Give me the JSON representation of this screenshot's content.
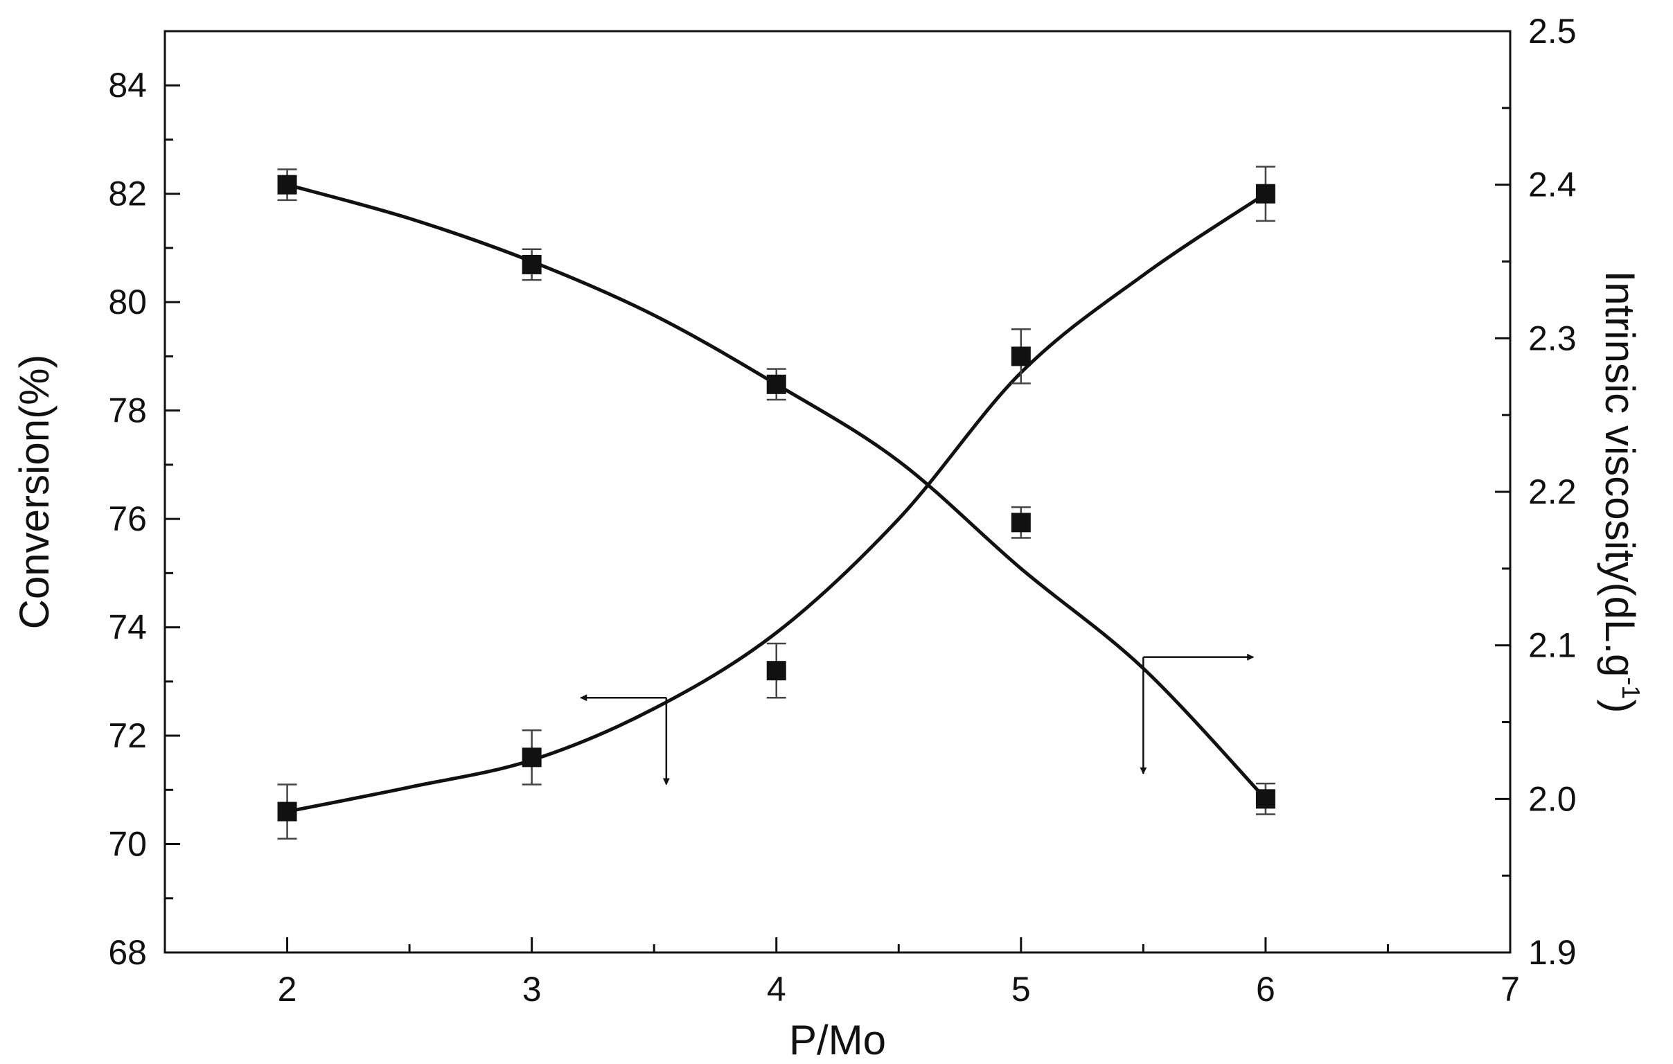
{
  "chart_data": {
    "type": "scatter",
    "title": "",
    "xlabel": "P/Mo",
    "ylabel_left": "Conversion(%)",
    "ylabel_right_main": "Intrinsic viscosity(dL.g",
    "ylabel_right_sup": "-1",
    "ylabel_right_close": ")",
    "xlim": [
      1.5,
      7
    ],
    "ylim_left": [
      68,
      85
    ],
    "ylim_right": [
      1.9,
      2.5
    ],
    "x_ticks": [
      2,
      3,
      4,
      5,
      6,
      7
    ],
    "y_left_ticks": [
      68,
      70,
      72,
      74,
      76,
      78,
      80,
      82,
      84
    ],
    "y_right_ticks": [
      1.9,
      2.0,
      2.1,
      2.2,
      2.3,
      2.4,
      2.5
    ],
    "y_right_tick_labels": [
      "1.9",
      "2.0",
      "2.1",
      "2.2",
      "2.3",
      "2.4",
      "2.5"
    ],
    "grid": false,
    "legend": "none",
    "series": [
      {
        "axis": "left",
        "x": [
          2,
          3,
          4,
          5,
          6
        ],
        "y": [
          70.6,
          71.6,
          73.2,
          79.0,
          82.0
        ],
        "err": [
          0.5,
          0.5,
          0.5,
          0.5,
          0.5
        ],
        "fit": [
          [
            2,
            70.6
          ],
          [
            2.5,
            71.05
          ],
          [
            3,
            71.55
          ],
          [
            3.5,
            72.5
          ],
          [
            4,
            73.9
          ],
          [
            4.5,
            76.0
          ],
          [
            5,
            78.7
          ],
          [
            5.5,
            80.5
          ],
          [
            6,
            82.0
          ]
        ]
      },
      {
        "axis": "right",
        "x": [
          2,
          3,
          4,
          5,
          6
        ],
        "y": [
          2.4,
          2.348,
          2.27,
          2.18,
          2.0
        ],
        "err": [
          0.01,
          0.01,
          0.01,
          0.01,
          0.01
        ],
        "fit": [
          [
            2,
            2.4
          ],
          [
            2.5,
            2.378
          ],
          [
            3,
            2.35
          ],
          [
            3.5,
            2.315
          ],
          [
            4,
            2.27
          ],
          [
            4.5,
            2.22
          ],
          [
            5,
            2.15
          ],
          [
            5.5,
            2.085
          ],
          [
            6,
            2.0
          ]
        ]
      }
    ],
    "annotations": [
      {
        "axis": "left",
        "corner": [
          3.55,
          72.7
        ],
        "horizontal_to": 3.2,
        "vertical_to": 71.1
      },
      {
        "axis": "left",
        "corner": [
          5.5,
          73.45
        ],
        "horizontal_to": 5.95,
        "vertical_to": 71.3
      }
    ],
    "colors": {
      "ink": "#111111"
    }
  }
}
